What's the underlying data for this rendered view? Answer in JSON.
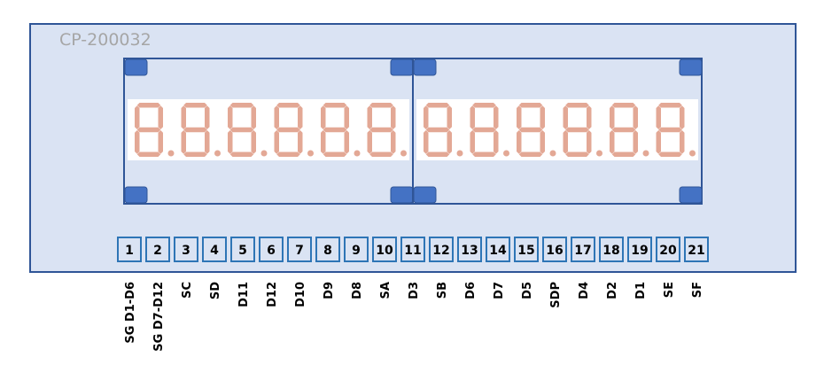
{
  "title": "CP-200032",
  "colors": {
    "panel_fill": "#dae3f3",
    "panel_border": "#2f5597",
    "corner_pad": "#4472c4",
    "segment": "#e3a895",
    "pin_border": "#2e75b6"
  },
  "displays": [
    {
      "digits": 6,
      "decimal_points": true
    },
    {
      "digits": 6,
      "decimal_points": true
    }
  ],
  "pins": [
    {
      "number": "1",
      "label": "SG D1-D6"
    },
    {
      "number": "2",
      "label": "SG D7-D12"
    },
    {
      "number": "3",
      "label": "SC"
    },
    {
      "number": "4",
      "label": "SD"
    },
    {
      "number": "5",
      "label": "D11"
    },
    {
      "number": "6",
      "label": "D12"
    },
    {
      "number": "7",
      "label": "D10"
    },
    {
      "number": "8",
      "label": "D9"
    },
    {
      "number": "9",
      "label": "D8"
    },
    {
      "number": "10",
      "label": "SA"
    },
    {
      "number": "11",
      "label": "D3"
    },
    {
      "number": "12",
      "label": "SB"
    },
    {
      "number": "13",
      "label": "D6"
    },
    {
      "number": "14",
      "label": "D7"
    },
    {
      "number": "15",
      "label": "D5"
    },
    {
      "number": "16",
      "label": "SDP"
    },
    {
      "number": "17",
      "label": "D4"
    },
    {
      "number": "18",
      "label": "D2"
    },
    {
      "number": "19",
      "label": "D1"
    },
    {
      "number": "20",
      "label": "SE"
    },
    {
      "number": "21",
      "label": "SF"
    }
  ]
}
